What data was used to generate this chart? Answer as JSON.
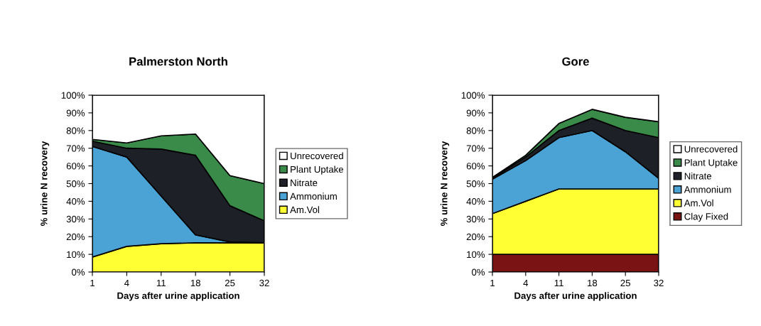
{
  "chart_data": [
    {
      "type": "area",
      "stacked": true,
      "title": "Palmerston North",
      "xlabel": "Days after urine application",
      "ylabel": "% urine N recovery",
      "categories": [
        "1",
        "4",
        "11",
        "18",
        "25",
        "32"
      ],
      "series": [
        {
          "name": "Am.Vol",
          "color": "#ffff33",
          "values": [
            8.5,
            14.5,
            16,
            16.5,
            16.5,
            16.5
          ]
        },
        {
          "name": "Ammonium",
          "color": "#4aa3d4",
          "values": [
            62.5,
            50.5,
            27,
            4.5,
            0.5,
            0
          ]
        },
        {
          "name": "Nitrate",
          "color": "#1e2028",
          "values": [
            3,
            5,
            26.5,
            45,
            20.5,
            12.5
          ]
        },
        {
          "name": "Plant Uptake",
          "color": "#3a8a4a",
          "values": [
            1,
            3,
            7.5,
            12,
            17,
            21
          ]
        },
        {
          "name": "Unrecovered",
          "color": "#ffffff",
          "values": [
            25,
            27,
            23,
            22,
            45.5,
            50
          ]
        }
      ],
      "ylim": [
        0,
        100
      ],
      "yticks": [
        {
          "value": 0,
          "label": "0%"
        },
        {
          "value": 10,
          "label": "10%"
        },
        {
          "value": 20,
          "label": "20%"
        },
        {
          "value": 30,
          "label": "30%"
        },
        {
          "value": 40,
          "label": "40%"
        },
        {
          "value": 50,
          "label": "50%"
        },
        {
          "value": 60,
          "label": "60%"
        },
        {
          "value": 70,
          "label": "70%"
        },
        {
          "value": 80,
          "label": "80%"
        },
        {
          "value": 90,
          "label": "90%"
        },
        {
          "value": 100,
          "label": "100%"
        }
      ],
      "legend": "right"
    },
    {
      "type": "area",
      "stacked": true,
      "title": "Gore",
      "xlabel": "Days after urine application",
      "ylabel": "% urine N recovery",
      "categories": [
        "1",
        "4",
        "11",
        "18",
        "25",
        "32"
      ],
      "series": [
        {
          "name": "Clay Fixed",
          "color": "#7a1414",
          "values": [
            10,
            10,
            10,
            10,
            10,
            10
          ]
        },
        {
          "name": "Am.Vol",
          "color": "#ffff33",
          "values": [
            23,
            30,
            37,
            37,
            37,
            37
          ]
        },
        {
          "name": "Ammonium",
          "color": "#4aa3d4",
          "values": [
            19.5,
            23,
            29,
            33,
            21,
            6
          ]
        },
        {
          "name": "Nitrate",
          "color": "#1e2028",
          "values": [
            0.5,
            2,
            4,
            7,
            12,
            23
          ]
        },
        {
          "name": "Plant Uptake",
          "color": "#3a8a4a",
          "values": [
            0.5,
            1,
            4,
            5,
            7.5,
            9
          ]
        },
        {
          "name": "Unrecovered",
          "color": "#ffffff",
          "values": [
            46.5,
            34,
            16,
            8,
            12.5,
            15
          ]
        }
      ],
      "ylim": [
        0,
        100
      ],
      "yticks": [
        {
          "value": 0,
          "label": "0%"
        },
        {
          "value": 10,
          "label": "10%"
        },
        {
          "value": 20,
          "label": "20%"
        },
        {
          "value": 30,
          "label": "30%"
        },
        {
          "value": 40,
          "label": "40%"
        },
        {
          "value": 50,
          "label": "50%"
        },
        {
          "value": 60,
          "label": "60%"
        },
        {
          "value": 70,
          "label": "70%"
        },
        {
          "value": 80,
          "label": "80%"
        },
        {
          "value": 90,
          "label": "90%"
        },
        {
          "value": 100,
          "label": "100%"
        }
      ],
      "legend": "right"
    }
  ]
}
